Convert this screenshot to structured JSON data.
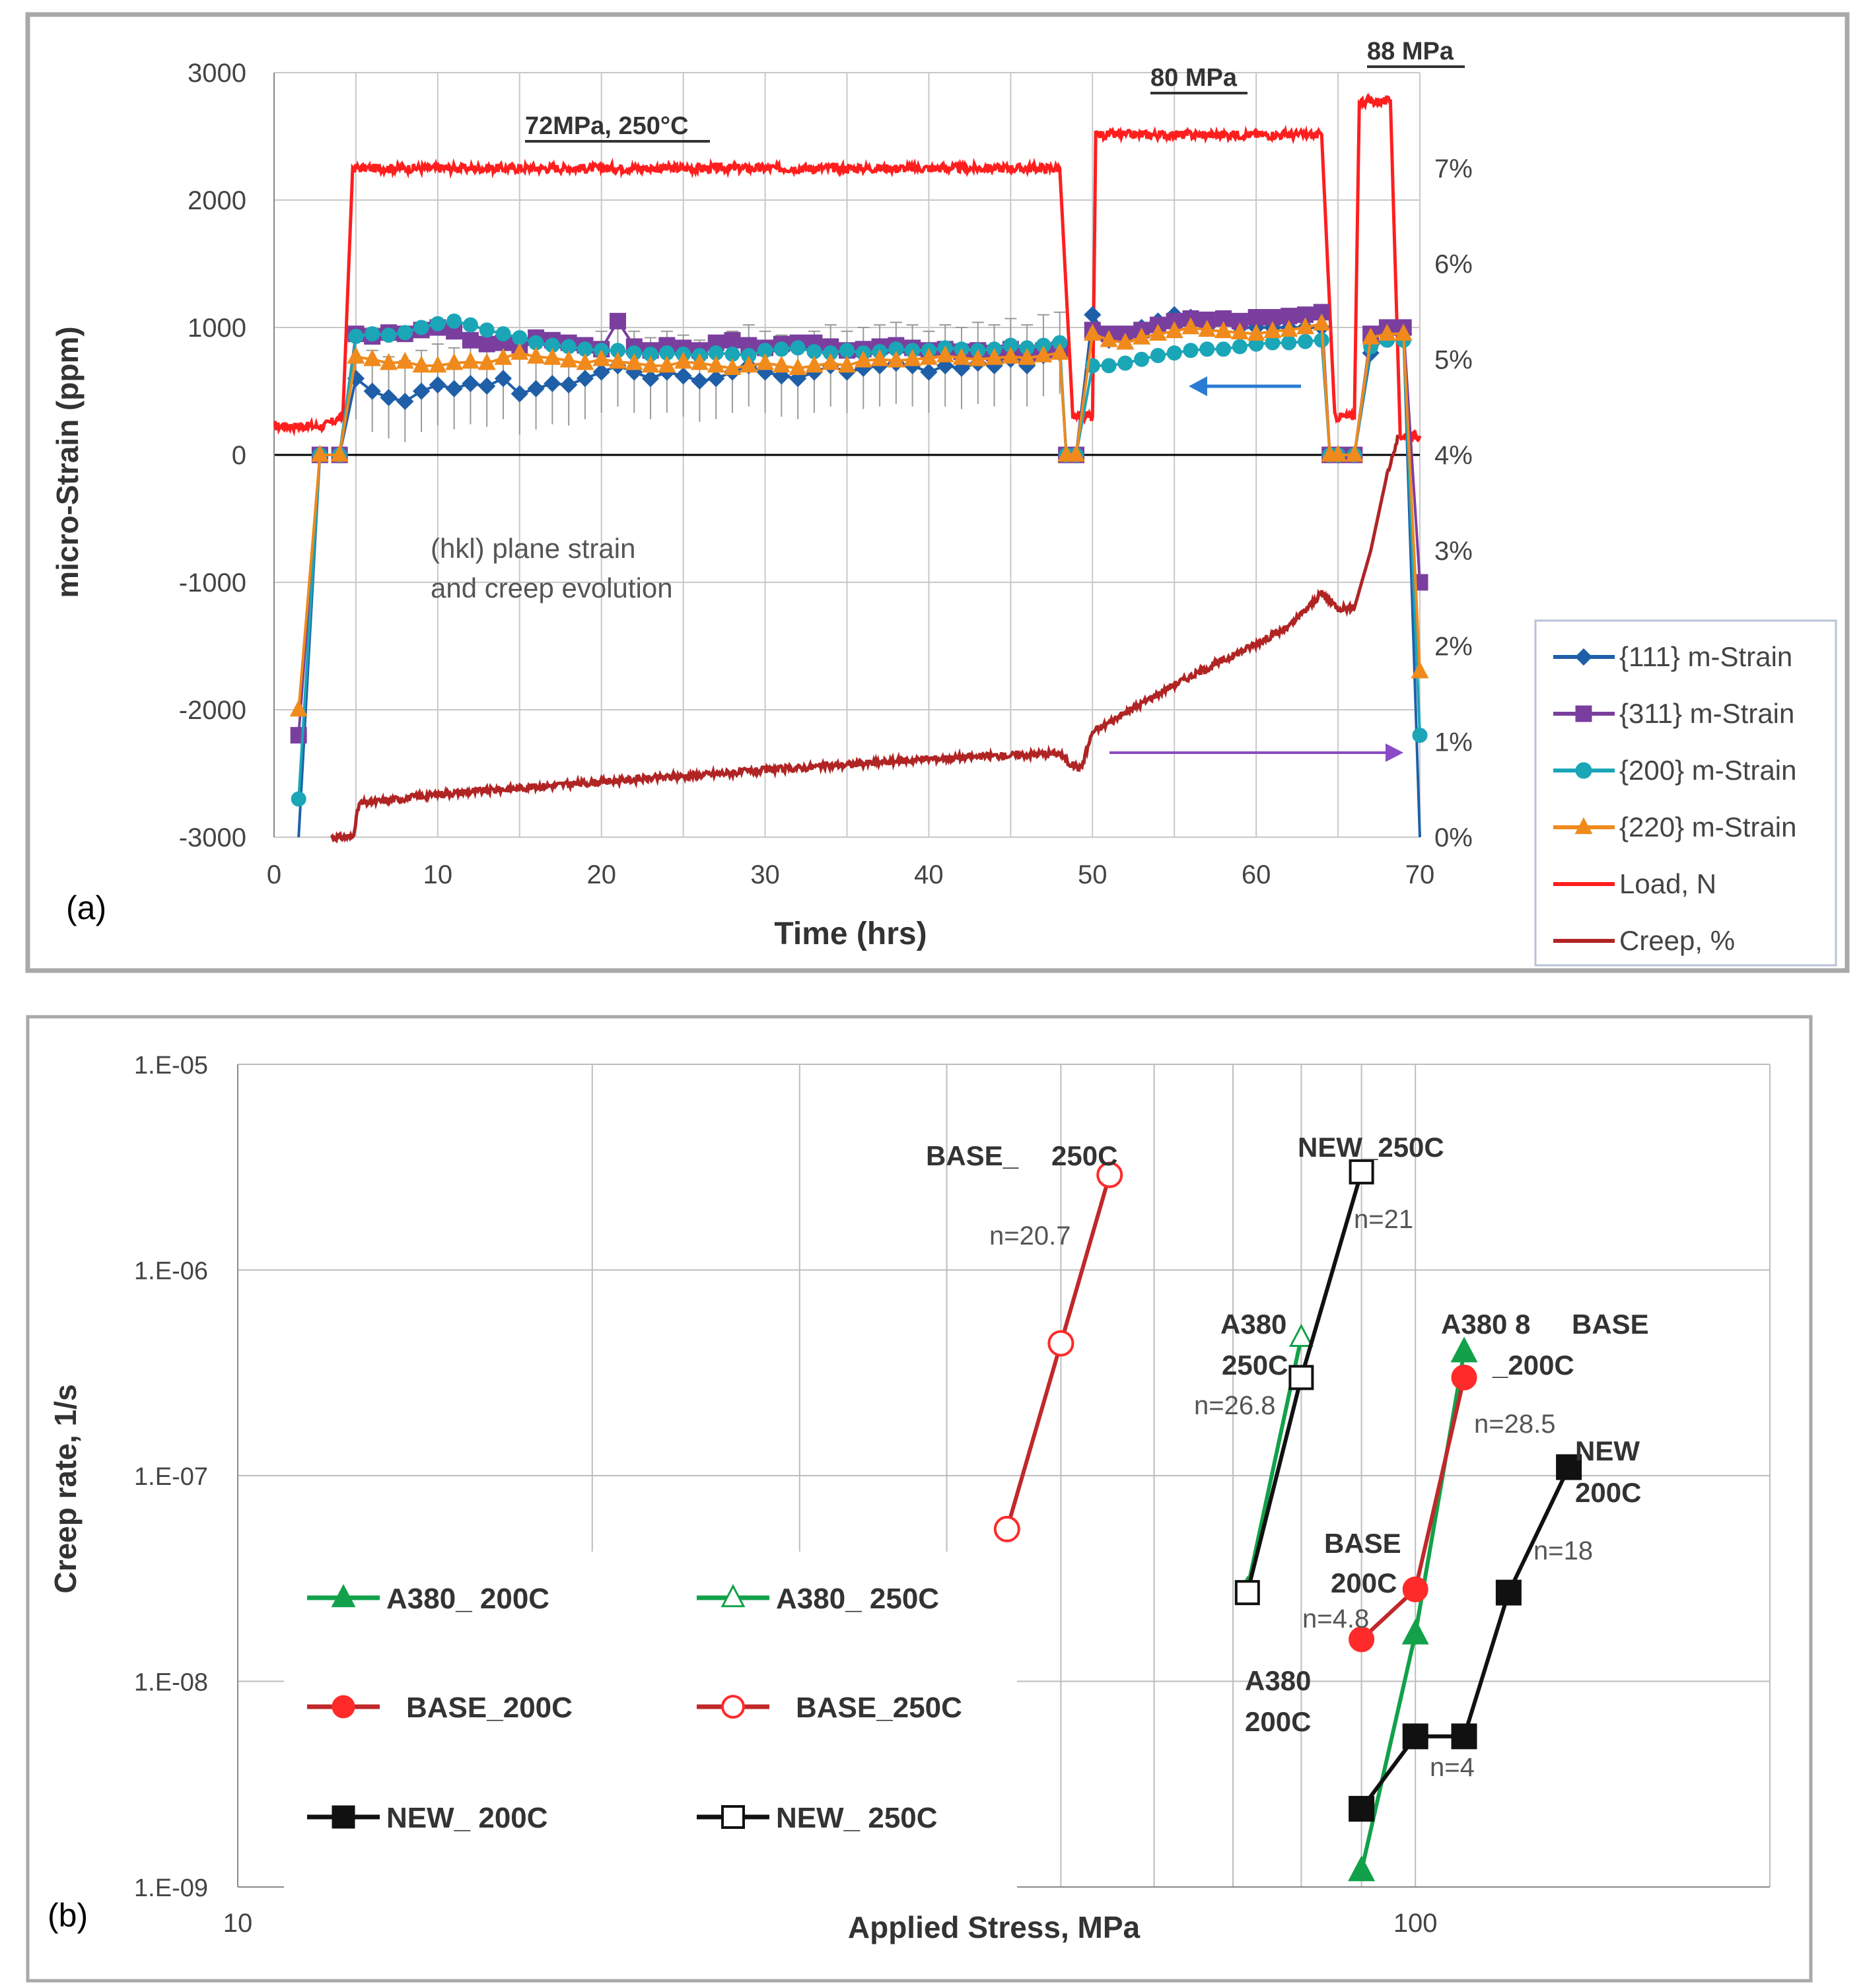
{
  "panels": {
    "a_label": "(a)",
    "b_label": "(b)"
  },
  "colors": {
    "s111": "#1f5fa8",
    "s311": "#7a3f9e",
    "s200": "#1aa6b7",
    "s220": "#f08a1c",
    "load": "#ff1e1e",
    "creep": "#b02424",
    "a380": "#12a14a",
    "base": "#ff2a2a",
    "base_line": "#c0282a",
    "new": "#111111",
    "blue_arrow": "#2a7bd4",
    "purple_arrow": "#8a4bc4",
    "border": "#a0a0a0",
    "grid": "#c8c8c8"
  },
  "chart_data": [
    {
      "id": "a",
      "type": "line",
      "xlabel": "Time (hrs)",
      "ylabel": "micro-Strain (ppm)",
      "xlim": [
        0,
        70
      ],
      "ylim": [
        -3000,
        3000
      ],
      "y2lim": [
        0,
        8
      ],
      "x_ticks": [
        "0",
        "10",
        "20",
        "30",
        "40",
        "50",
        "60",
        "70"
      ],
      "y_ticks": [
        "3000",
        "2000",
        "1000",
        "0",
        "-1000",
        "-2000",
        "-3000"
      ],
      "y2_ticks": [
        "7%",
        "6%",
        "5%",
        "4%",
        "3%",
        "2%",
        "1%",
        "0%"
      ],
      "annotations": {
        "stage1": "72MPa,  250°C",
        "stage2": "80 MPa",
        "stage3": "88 MPa",
        "note1": "(hkl) plane strain",
        "note2": "and creep evolution"
      },
      "legend": [
        "{111} m-Strain",
        "{311} m-Strain",
        "{200} m-Strain",
        "{220} m-Strain",
        "Load, N",
        "Creep, %"
      ],
      "series": [
        {
          "name": "{111} m-Strain",
          "x": [
            1.5,
            2.8,
            4,
            5,
            6,
            7,
            8,
            9,
            10,
            11,
            12,
            13,
            14,
            15,
            16,
            17,
            18,
            19,
            20,
            21,
            22,
            23,
            24,
            25,
            26,
            27,
            28,
            29,
            30,
            31,
            32,
            33,
            34,
            35,
            36,
            37,
            38,
            39,
            40,
            41,
            42,
            43,
            44,
            45,
            46,
            47,
            48,
            48.4,
            49,
            50,
            51,
            52,
            53,
            54,
            55,
            56,
            57,
            58,
            59,
            60,
            61,
            62,
            63,
            64,
            64.5,
            65,
            66,
            67,
            68,
            69,
            70
          ],
          "values": [
            -3000,
            0,
            0,
            600,
            500,
            450,
            420,
            500,
            550,
            520,
            560,
            540,
            600,
            480,
            520,
            560,
            550,
            600,
            650,
            700,
            650,
            600,
            650,
            620,
            580,
            600,
            650,
            700,
            650,
            620,
            600,
            650,
            700,
            650,
            680,
            700,
            720,
            700,
            650,
            700,
            680,
            720,
            700,
            750,
            700,
            780,
            800,
            0,
            0,
            1100,
            900,
            950,
            1000,
            1050,
            1100,
            1080,
            1000,
            1050,
            1000,
            1000,
            1000,
            1000,
            1000,
            1000,
            0,
            0,
            0,
            800,
            950,
            950,
            -3000
          ]
        },
        {
          "name": "{311} m-Strain",
          "x": [
            1.5,
            2.8,
            4,
            5,
            6,
            7,
            8,
            9,
            10,
            11,
            12,
            13,
            14,
            15,
            16,
            17,
            18,
            19,
            20,
            21,
            22,
            23,
            24,
            25,
            26,
            27,
            28,
            29,
            30,
            31,
            32,
            33,
            34,
            35,
            36,
            37,
            38,
            39,
            40,
            41,
            42,
            43,
            44,
            45,
            46,
            47,
            48,
            48.4,
            49,
            50,
            51,
            52,
            53,
            54,
            55,
            56,
            57,
            58,
            59,
            60,
            61,
            62,
            63,
            64,
            64.5,
            65,
            66,
            67,
            68,
            69,
            70
          ],
          "values": [
            -2200,
            0,
            0,
            950,
            930,
            960,
            950,
            980,
            1000,
            970,
            900,
            870,
            880,
            860,
            920,
            900,
            880,
            860,
            830,
            1050,
            850,
            820,
            860,
            840,
            820,
            880,
            900,
            860,
            840,
            870,
            880,
            880,
            850,
            820,
            830,
            850,
            860,
            840,
            820,
            830,
            810,
            820,
            800,
            830,
            800,
            820,
            830,
            0,
            0,
            980,
            950,
            950,
            980,
            1020,
            1050,
            1070,
            1060,
            1070,
            1050,
            1080,
            1080,
            1090,
            1100,
            1120,
            0,
            0,
            0,
            950,
            1000,
            1000,
            -1000
          ]
        },
        {
          "name": "{200} m-Strain",
          "x": [
            1.5,
            2.8,
            4,
            5,
            6,
            7,
            8,
            9,
            10,
            11,
            12,
            13,
            14,
            15,
            16,
            17,
            18,
            19,
            20,
            21,
            22,
            23,
            24,
            25,
            26,
            27,
            28,
            29,
            30,
            31,
            32,
            33,
            34,
            35,
            36,
            37,
            38,
            39,
            40,
            41,
            42,
            43,
            44,
            45,
            46,
            47,
            48,
            48.4,
            49,
            50,
            51,
            52,
            53,
            54,
            55,
            56,
            57,
            58,
            59,
            60,
            61,
            62,
            63,
            64,
            64.5,
            65,
            66,
            67,
            68,
            69,
            70
          ],
          "values": [
            -2700,
            0,
            0,
            930,
            950,
            940,
            960,
            1000,
            1030,
            1050,
            1020,
            980,
            950,
            920,
            880,
            860,
            850,
            830,
            820,
            820,
            800,
            790,
            800,
            790,
            780,
            800,
            790,
            780,
            820,
            830,
            840,
            810,
            800,
            820,
            800,
            810,
            830,
            820,
            820,
            840,
            830,
            820,
            830,
            860,
            840,
            860,
            880,
            0,
            0,
            700,
            700,
            720,
            750,
            780,
            800,
            820,
            830,
            830,
            850,
            870,
            880,
            880,
            890,
            900,
            0,
            0,
            0,
            850,
            900,
            900,
            -2200
          ]
        },
        {
          "name": "{220} m-Strain",
          "x": [
            1.5,
            2.8,
            4,
            5,
            6,
            7,
            8,
            9,
            10,
            11,
            12,
            13,
            14,
            15,
            16,
            17,
            18,
            19,
            20,
            21,
            22,
            23,
            24,
            25,
            26,
            27,
            28,
            29,
            30,
            31,
            32,
            33,
            34,
            35,
            36,
            37,
            38,
            39,
            40,
            41,
            42,
            43,
            44,
            45,
            46,
            47,
            48,
            48.4,
            49,
            50,
            51,
            52,
            53,
            54,
            55,
            56,
            57,
            58,
            59,
            60,
            61,
            62,
            63,
            64,
            64.5,
            65,
            66,
            67,
            68,
            69,
            70
          ],
          "values": [
            -2000,
            0,
            0,
            770,
            750,
            720,
            730,
            700,
            700,
            720,
            730,
            720,
            760,
            800,
            770,
            760,
            740,
            720,
            750,
            730,
            720,
            700,
            700,
            730,
            720,
            700,
            680,
            700,
            720,
            700,
            680,
            700,
            720,
            700,
            740,
            750,
            740,
            750,
            760,
            780,
            760,
            750,
            760,
            770,
            760,
            780,
            800,
            0,
            0,
            950,
            900,
            880,
            920,
            950,
            970,
            1000,
            980,
            970,
            960,
            950,
            970,
            980,
            1000,
            1030,
            0,
            0,
            0,
            920,
            950,
            950,
            -1700
          ]
        },
        {
          "name": "Load, N",
          "axis": "secondary",
          "x": [
            0,
            3,
            4.2,
            4.8,
            48,
            48.8,
            50,
            50.2,
            64,
            64.8,
            66,
            66.3,
            68.2,
            68.8,
            70
          ],
          "values": [
            4.3,
            4.3,
            4.4,
            7.0,
            7.0,
            4.4,
            4.4,
            7.35,
            7.35,
            4.4,
            4.4,
            7.7,
            7.7,
            4.2,
            4.2
          ]
        },
        {
          "name": "Creep, %",
          "axis": "secondary",
          "x": [
            3.5,
            4.8,
            5.2,
            10,
            20,
            30,
            40,
            48,
            48.5,
            49.3,
            50,
            52,
            55,
            58,
            62,
            64,
            65,
            66,
            67,
            68,
            68.7
          ],
          "values": [
            0.0,
            0.0,
            0.35,
            0.45,
            0.58,
            0.7,
            0.82,
            0.88,
            0.78,
            0.72,
            1.1,
            1.3,
            1.6,
            1.85,
            2.2,
            2.55,
            2.4,
            2.4,
            3.0,
            3.8,
            4.2
          ]
        }
      ]
    },
    {
      "id": "b",
      "type": "scatter",
      "xscale": "log",
      "yscale": "log",
      "xlabel": "Applied Stress, MPa",
      "ylabel": "Creep rate, 1/s",
      "xlim": [
        10,
        200
      ],
      "ylim": [
        1e-09,
        1e-05
      ],
      "x_ticks": [
        "10",
        "100"
      ],
      "y_ticks": [
        "1.E-05",
        "1.E-06",
        "1.E-07",
        "1.E-08",
        "1.E-09"
      ],
      "legend": [
        "A380_ 200C",
        "A380_ 250C",
        "BASE_200C",
        "BASE_250C",
        "NEW_ 200C",
        "NEW_ 250C"
      ],
      "series": [
        {
          "name": "A380_ 200C",
          "x": [
            90,
            100,
            110
          ],
          "values": [
            1.2e-09,
            1.7e-08,
            4e-07
          ]
        },
        {
          "name": "A380_ 250C",
          "x": [
            72,
            80
          ],
          "values": [
            2.8e-08,
            4.7e-07
          ]
        },
        {
          "name": "BASE_200C",
          "x": [
            90,
            100,
            110
          ],
          "values": [
            1.6e-08,
            2.8e-08,
            3e-07
          ]
        },
        {
          "name": "BASE_250C",
          "x": [
            45,
            50,
            55
          ],
          "values": [
            5.5e-08,
            4.4e-07,
            2.9e-06
          ]
        },
        {
          "name": "NEW_ 200C",
          "x": [
            90,
            100,
            110,
            120,
            135
          ],
          "values": [
            2.4e-09,
            5.4e-09,
            5.4e-09,
            2.7e-08,
            1.1e-07
          ]
        },
        {
          "name": "NEW_ 250C",
          "x": [
            72,
            80,
            90
          ],
          "values": [
            2.7e-08,
            3e-07,
            3e-06
          ]
        }
      ],
      "annotations": {
        "base250_a": "BASE_",
        "base250_b": "250C",
        "n_base250": "n=20.7",
        "new250": "NEW_250C",
        "n_new250": "n=21",
        "a380_250_a": "A380",
        "a380_250_b": "250C",
        "n_a380_250": "n=26.8",
        "a380_8": "A380 8",
        "base_a": "BASE",
        "c200": "_200C",
        "n_285": "n=28.5",
        "new200_a": "NEW",
        "new200_b": "200C",
        "n_18": "n=18",
        "base200_a": "BASE",
        "base200_b": "200C",
        "n_48": "n=4.8",
        "a380_200_a": "A380",
        "a380_200_b": "200C",
        "n_4": "n=4"
      }
    }
  ]
}
